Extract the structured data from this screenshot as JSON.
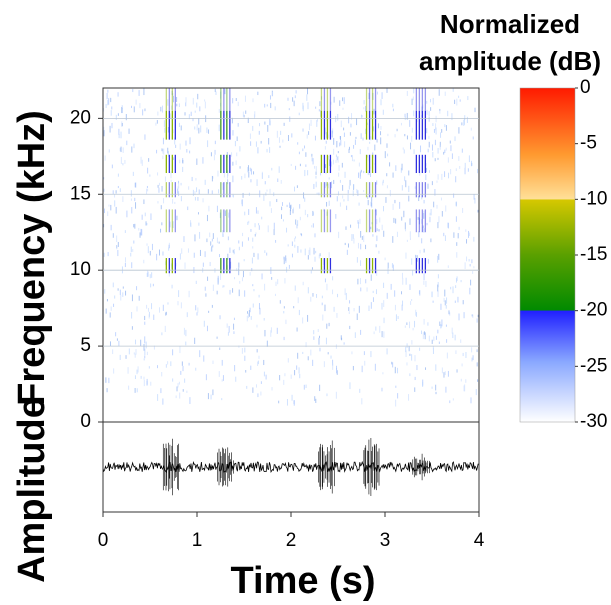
{
  "chart_data": {
    "type": "spectrogram",
    "colorbar_title": [
      "Normalized",
      "amplitude (dB)"
    ],
    "xlabel": "Time (s)",
    "ylabel": "Frequency (kHz)",
    "waveform_label": "Amplitude",
    "xlim": [
      0,
      4
    ],
    "xticks": [
      0,
      1,
      2,
      3,
      4
    ],
    "ylim": [
      0,
      22
    ],
    "yticks": [
      0,
      5,
      10,
      15,
      20
    ],
    "clim": [
      -30,
      0
    ],
    "cticks": [
      0,
      -5,
      -10,
      -15,
      -20,
      -25,
      -30
    ],
    "grid": true,
    "events": {
      "x": [
        0.72,
        1.3,
        2.37,
        2.85,
        3.38
      ],
      "values": [
        -12,
        -18,
        -14,
        -12,
        -22
      ]
    }
  }
}
